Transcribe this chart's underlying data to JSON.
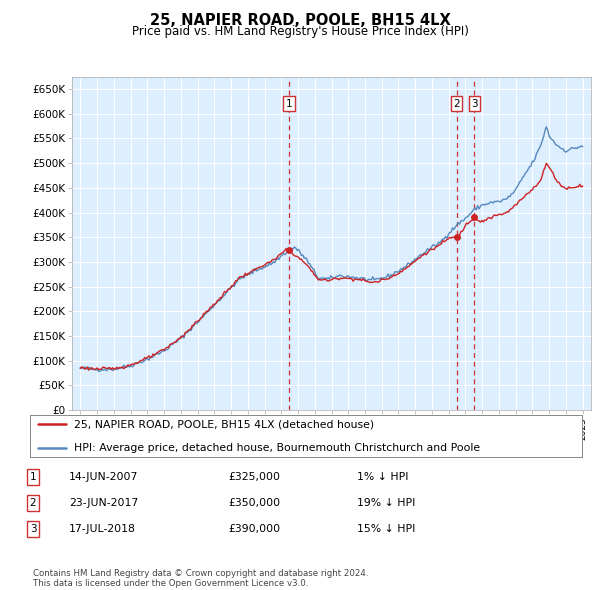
{
  "title": "25, NAPIER ROAD, POOLE, BH15 4LX",
  "subtitle": "Price paid vs. HM Land Registry's House Price Index (HPI)",
  "ylabel_ticks": [
    "£0",
    "£50K",
    "£100K",
    "£150K",
    "£200K",
    "£250K",
    "£300K",
    "£350K",
    "£400K",
    "£450K",
    "£500K",
    "£550K",
    "£600K",
    "£650K"
  ],
  "ytick_values": [
    0,
    50000,
    100000,
    150000,
    200000,
    250000,
    300000,
    350000,
    400000,
    450000,
    500000,
    550000,
    600000,
    650000
  ],
  "hpi_color": "#5588bb",
  "prop_color": "#cc2222",
  "sale_line_color": "#cc3333",
  "plot_bg": "#ddeeff",
  "grid_color": "#ffffff",
  "legend_label_prop": "25, NAPIER ROAD, POOLE, BH15 4LX (detached house)",
  "legend_label_hpi": "HPI: Average price, detached house, Bournemouth Christchurch and Poole",
  "footer": "Contains HM Land Registry data © Crown copyright and database right 2024.\nThis data is licensed under the Open Government Licence v3.0.",
  "xmin": 1994.5,
  "xmax": 2025.5,
  "ymin": 0,
  "ymax": 675000,
  "sale_points": [
    {
      "year": 2007.46,
      "price": 325000,
      "label": "1",
      "date": "14-JUN-2007",
      "price_str": "£325,000",
      "pct": "1%",
      "dir": "↓"
    },
    {
      "year": 2017.47,
      "price": 350000,
      "label": "2",
      "date": "23-JUN-2017",
      "price_str": "£350,000",
      "pct": "19%",
      "dir": "↓"
    },
    {
      "year": 2018.54,
      "price": 390000,
      "label": "3",
      "date": "17-JUL-2018",
      "price_str": "£390,000",
      "pct": "15%",
      "dir": "↓"
    }
  ]
}
